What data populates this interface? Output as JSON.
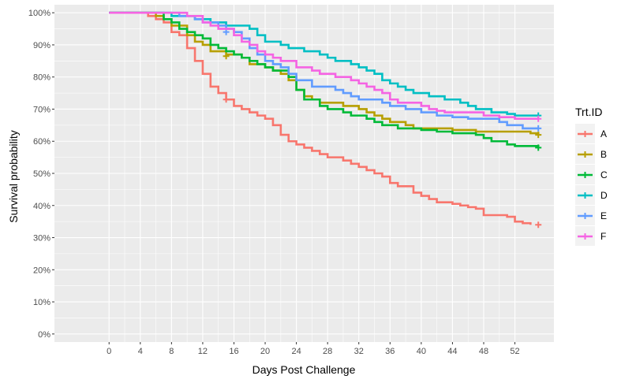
{
  "chart_data": {
    "type": "line",
    "step": true,
    "xlabel": "Days Post Challenge",
    "ylabel": "Survival probability",
    "xlim": [
      -7,
      57
    ],
    "ylim": [
      -2.5,
      102.5
    ],
    "x_ticks": [
      0,
      4,
      8,
      12,
      16,
      20,
      24,
      28,
      32,
      36,
      40,
      44,
      48,
      52
    ],
    "y_ticks": [
      0,
      10,
      20,
      30,
      40,
      50,
      60,
      70,
      80,
      90,
      100
    ],
    "y_tick_labels": [
      "0%",
      "10%",
      "20%",
      "30%",
      "40%",
      "50%",
      "60%",
      "70%",
      "80%",
      "90%",
      "100%"
    ],
    "grid": true,
    "legend": {
      "title": "Trt.ID",
      "position": "right"
    },
    "series": [
      {
        "name": "A",
        "color": "#F8766D",
        "points": [
          [
            0,
            100
          ],
          [
            5,
            99
          ],
          [
            6,
            98
          ],
          [
            7,
            97
          ],
          [
            8,
            94
          ],
          [
            9,
            93
          ],
          [
            10,
            89
          ],
          [
            11,
            85
          ],
          [
            12,
            81
          ],
          [
            13,
            77
          ],
          [
            14,
            75
          ],
          [
            15,
            73
          ],
          [
            16,
            71
          ],
          [
            17,
            70
          ],
          [
            18,
            69
          ],
          [
            19,
            68
          ],
          [
            20,
            67
          ],
          [
            21,
            65
          ],
          [
            22,
            62
          ],
          [
            23,
            60
          ],
          [
            24,
            59
          ],
          [
            25,
            58
          ],
          [
            26,
            57
          ],
          [
            27,
            56
          ],
          [
            28,
            55
          ],
          [
            30,
            54
          ],
          [
            31,
            53
          ],
          [
            32,
            52
          ],
          [
            33,
            51
          ],
          [
            34,
            50
          ],
          [
            35,
            49
          ],
          [
            36,
            47
          ],
          [
            37,
            46
          ],
          [
            38,
            46
          ],
          [
            39,
            44
          ],
          [
            40,
            43
          ],
          [
            41,
            42
          ],
          [
            42,
            41
          ],
          [
            44,
            40.5
          ],
          [
            45,
            40
          ],
          [
            46,
            39.5
          ],
          [
            47,
            39
          ],
          [
            48,
            37
          ],
          [
            51,
            36.5
          ],
          [
            52,
            35
          ],
          [
            53,
            34.5
          ],
          [
            54,
            34
          ]
        ],
        "censor": [
          [
            15,
            73
          ],
          [
            55,
            34
          ]
        ]
      },
      {
        "name": "B",
        "color": "#B79F00",
        "points": [
          [
            0,
            100
          ],
          [
            6,
            99
          ],
          [
            7,
            98
          ],
          [
            8,
            96
          ],
          [
            10,
            93
          ],
          [
            11,
            91
          ],
          [
            12,
            90
          ],
          [
            13,
            88
          ],
          [
            15,
            87
          ],
          [
            17,
            86
          ],
          [
            18,
            84
          ],
          [
            20,
            83
          ],
          [
            21,
            82
          ],
          [
            22,
            81
          ],
          [
            23,
            79
          ],
          [
            24,
            76
          ],
          [
            25,
            74
          ],
          [
            26,
            73
          ],
          [
            27,
            72
          ],
          [
            30,
            71
          ],
          [
            32,
            70
          ],
          [
            33,
            69
          ],
          [
            34,
            68
          ],
          [
            35,
            67
          ],
          [
            36,
            66
          ],
          [
            38,
            65
          ],
          [
            39,
            64
          ],
          [
            44,
            63.5
          ],
          [
            47,
            63
          ],
          [
            54,
            62.5
          ],
          [
            55,
            62
          ]
        ],
        "censor": [
          [
            15,
            86.5
          ],
          [
            55,
            62
          ]
        ]
      },
      {
        "name": "C",
        "color": "#00BA38",
        "points": [
          [
            0,
            100
          ],
          [
            7,
            98
          ],
          [
            8,
            97
          ],
          [
            9,
            95
          ],
          [
            10,
            94
          ],
          [
            11,
            93
          ],
          [
            12,
            92
          ],
          [
            13,
            90
          ],
          [
            14,
            89
          ],
          [
            15,
            88
          ],
          [
            16,
            87
          ],
          [
            17,
            86
          ],
          [
            18,
            85
          ],
          [
            19,
            84
          ],
          [
            20,
            83
          ],
          [
            21,
            82
          ],
          [
            23,
            80
          ],
          [
            24,
            76
          ],
          [
            25,
            73
          ],
          [
            27,
            71
          ],
          [
            28,
            70
          ],
          [
            30,
            69
          ],
          [
            31,
            68
          ],
          [
            33,
            67
          ],
          [
            34,
            66
          ],
          [
            35,
            65
          ],
          [
            37,
            64
          ],
          [
            40,
            63.5
          ],
          [
            42,
            63
          ],
          [
            44,
            62.5
          ],
          [
            47,
            62
          ],
          [
            48,
            61
          ],
          [
            49,
            60
          ],
          [
            51,
            59
          ],
          [
            52,
            58.5
          ],
          [
            55,
            58
          ]
        ],
        "censor": [
          [
            55,
            58
          ]
        ]
      },
      {
        "name": "D",
        "color": "#00BFC4",
        "points": [
          [
            0,
            100
          ],
          [
            8,
            99
          ],
          [
            11,
            98
          ],
          [
            13,
            97
          ],
          [
            15,
            96
          ],
          [
            18,
            95
          ],
          [
            19,
            93
          ],
          [
            20,
            91
          ],
          [
            22,
            90
          ],
          [
            23,
            89
          ],
          [
            25,
            88
          ],
          [
            27,
            87
          ],
          [
            28,
            86
          ],
          [
            29,
            85
          ],
          [
            31,
            84
          ],
          [
            32,
            83
          ],
          [
            33,
            82
          ],
          [
            34,
            81
          ],
          [
            35,
            79
          ],
          [
            36,
            78
          ],
          [
            37,
            77
          ],
          [
            38,
            76
          ],
          [
            39,
            75
          ],
          [
            41,
            74
          ],
          [
            43,
            73
          ],
          [
            45,
            72
          ],
          [
            46,
            71
          ],
          [
            47,
            70
          ],
          [
            49,
            69
          ],
          [
            51,
            68.5
          ],
          [
            52,
            68
          ],
          [
            55,
            68
          ]
        ],
        "censor": [
          [
            55,
            68
          ]
        ]
      },
      {
        "name": "E",
        "color": "#619CFF",
        "points": [
          [
            0,
            100
          ],
          [
            9,
            99
          ],
          [
            11,
            98
          ],
          [
            12,
            97
          ],
          [
            14,
            96
          ],
          [
            15,
            95
          ],
          [
            16,
            94
          ],
          [
            17,
            92
          ],
          [
            18,
            89
          ],
          [
            19,
            87
          ],
          [
            20,
            85
          ],
          [
            21,
            84
          ],
          [
            22,
            83
          ],
          [
            23,
            81
          ],
          [
            24,
            79
          ],
          [
            26,
            77
          ],
          [
            29,
            76
          ],
          [
            30,
            75
          ],
          [
            31,
            74
          ],
          [
            32,
            73
          ],
          [
            35,
            72
          ],
          [
            36,
            71
          ],
          [
            38,
            70
          ],
          [
            40,
            69
          ],
          [
            42,
            68
          ],
          [
            44,
            67.5
          ],
          [
            46,
            67
          ],
          [
            50,
            66
          ],
          [
            51,
            65
          ],
          [
            53,
            64
          ],
          [
            55,
            64
          ]
        ],
        "censor": [
          [
            15,
            94
          ],
          [
            55,
            64
          ]
        ]
      },
      {
        "name": "F",
        "color": "#F564E3",
        "points": [
          [
            0,
            100
          ],
          [
            10,
            99
          ],
          [
            12,
            97
          ],
          [
            13,
            96
          ],
          [
            14,
            95
          ],
          [
            16,
            93
          ],
          [
            17,
            91
          ],
          [
            18,
            90
          ],
          [
            19,
            88
          ],
          [
            20,
            87
          ],
          [
            21,
            86
          ],
          [
            22,
            85
          ],
          [
            24,
            83
          ],
          [
            26,
            82
          ],
          [
            27,
            81
          ],
          [
            29,
            80
          ],
          [
            31,
            79
          ],
          [
            32,
            78
          ],
          [
            33,
            77
          ],
          [
            34,
            76
          ],
          [
            35,
            75
          ],
          [
            36,
            73
          ],
          [
            37,
            72
          ],
          [
            40,
            71
          ],
          [
            41,
            70
          ],
          [
            42,
            69.5
          ],
          [
            43,
            69
          ],
          [
            48,
            68
          ],
          [
            50,
            67.5
          ],
          [
            52,
            67
          ],
          [
            55,
            67
          ]
        ],
        "censor": [
          [
            55,
            67
          ]
        ]
      }
    ]
  }
}
